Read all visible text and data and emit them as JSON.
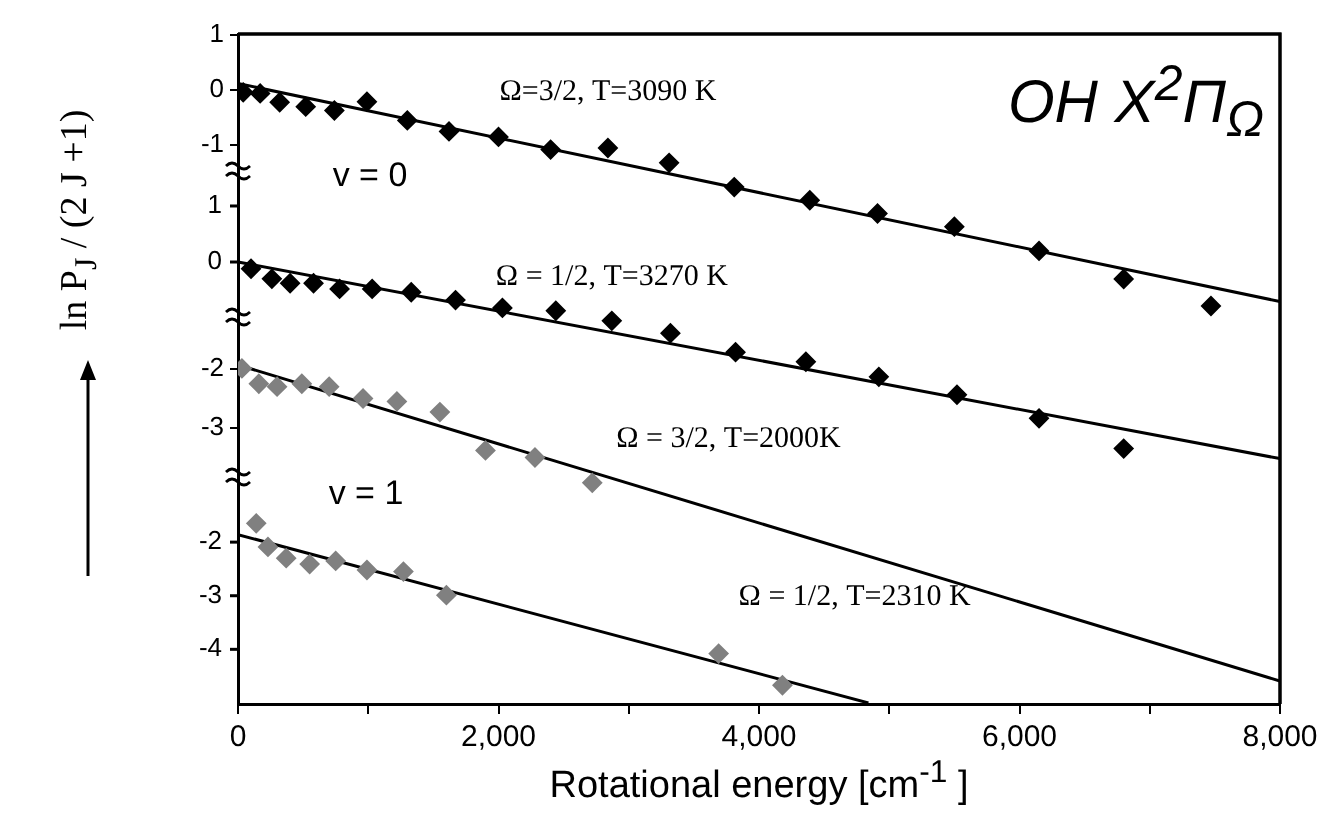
{
  "chart_data": [
    {
      "type": "scatter",
      "title": "OH  X$^{2}$Π$_{Ω}$",
      "ylabel": "ln P$_{J}$ / (2 J +1)",
      "annotations": [
        "v = 0"
      ],
      "tick_labels": "y",
      "xlim": [
        0,
        8000
      ],
      "ylim": [
        -11.15,
        1.02
      ],
      "yticks": [
        1,
        0,
        -1
      ],
      "y2lim": [
        -7.89,
        4.07
      ],
      "y2ticks": [
        1,
        0
      ],
      "series": [
        {
          "name": "Ω=3/2, T=3090 K",
          "color": "#000000",
          "marker": "diamond",
          "x": [
            40,
            170,
            320,
            520,
            740,
            990,
            1300,
            1620,
            2000,
            2400,
            2840,
            3310,
            3810,
            4390,
            4910,
            5500,
            6150,
            6800,
            7470
          ],
          "values": [
            -0.04,
            -0.06,
            -0.22,
            -0.3,
            -0.37,
            -0.21,
            -0.55,
            -0.75,
            -0.85,
            -1.08,
            -1.05,
            -1.32,
            -1.76,
            -2.0,
            -2.24,
            -2.48,
            -2.92,
            -3.43,
            -3.92
          ]
        },
        {
          "type": "line",
          "color": "#000000",
          "marker": "none",
          "x": [
            0,
            8000
          ],
          "values": [
            0.12,
            -3.84
          ]
        },
        {
          "name": "Ω = 1/2, T=3270 K",
          "color": "#000000",
          "marker": "diamond",
          "axis": "y2",
          "x": [
            100,
            260,
            400,
            580,
            780,
            1030,
            1330,
            1670,
            2030,
            2440,
            2870,
            3320,
            3820,
            4360,
            4920,
            5520,
            6150,
            6800
          ],
          "values": [
            -0.12,
            -0.3,
            -0.38,
            -0.38,
            -0.48,
            -0.48,
            -0.54,
            -0.68,
            -0.82,
            -0.87,
            -1.05,
            -1.27,
            -1.61,
            -1.78,
            -2.05,
            -2.37,
            -2.79,
            -3.33
          ]
        },
        {
          "type": "line",
          "color": "#000000",
          "marker": "none",
          "axis": "y2",
          "x": [
            0,
            8000
          ],
          "values": [
            0,
            -3.51
          ]
        }
      ]
    },
    {
      "type": "scatter",
      "xlabel": "Rotational energy  [cm$^{-1}$ ]",
      "annotations": [
        "v = 1"
      ],
      "xlim": [
        0,
        8000
      ],
      "xticks": [
        0,
        {
          "value": 1000,
          "label": null
        },
        {
          "value": 2000,
          "label": "2,000"
        },
        {
          "value": 3000,
          "label": null
        },
        {
          "value": 4000,
          "label": "4,000"
        },
        {
          "value": 5000,
          "label": null
        },
        {
          "value": 6000,
          "label": "6,000"
        },
        {
          "value": 7000,
          "label": null
        },
        {
          "value": 8000,
          "label": "8,000"
        }
      ],
      "ylim": [
        -7.68,
        3.68
      ],
      "yticks": [
        -2,
        -3
      ],
      "y2lim": [
        -5.02,
        7.48
      ],
      "y2ticks": [
        -2,
        -3,
        -4
      ],
      "series": [
        {
          "name": "Ω = 3/2, T=2000K",
          "color": "#808080",
          "marker": "diamond",
          "x": [
            30,
            160,
            300,
            490,
            700,
            960,
            1220,
            1550,
            1900,
            2280,
            2720
          ],
          "values": [
            -1.99,
            -2.25,
            -2.3,
            -2.25,
            -2.3,
            -2.5,
            -2.55,
            -2.73,
            -3.38,
            -3.5,
            -3.93
          ]
        },
        {
          "type": "line",
          "color": "#000000",
          "marker": "none",
          "x": [
            0,
            8000
          ],
          "values": [
            -1.93,
            -7.29
          ]
        },
        {
          "name": "Ω = 1/2, T=2310 K",
          "color": "#808080",
          "marker": "diamond",
          "axis": "y2",
          "x": [
            140,
            230,
            370,
            550,
            750,
            990,
            1270,
            1600,
            3690,
            4180
          ],
          "values": [
            -1.65,
            -2.09,
            -2.3,
            -2.41,
            -2.35,
            -2.52,
            -2.55,
            -2.99,
            -4.08,
            -4.67
          ]
        },
        {
          "type": "line",
          "color": "#000000",
          "marker": "none",
          "axis": "y2",
          "x": [
            0,
            4840
          ],
          "values": [
            -1.86,
            -5.0
          ]
        }
      ]
    }
  ]
}
